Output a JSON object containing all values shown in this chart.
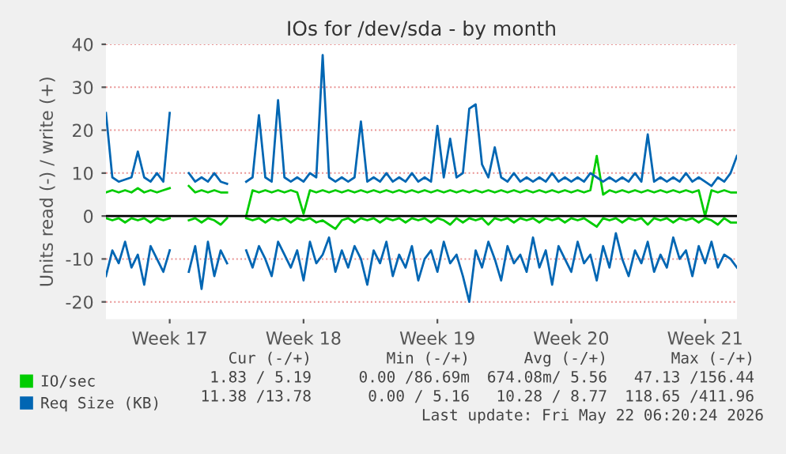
{
  "chart_data": {
    "type": "line",
    "title": "IOs for /dev/sda - by month",
    "ylabel": "Units read (-) / write (+)",
    "categories": [
      null,
      null,
      null,
      null,
      null,
      null,
      null,
      null,
      null,
      null,
      "Week 17",
      null,
      null,
      null,
      null,
      null,
      null,
      null,
      null,
      null,
      null,
      null,
      null,
      null,
      null,
      null,
      null,
      null,
      null,
      null,
      null,
      "Week 18",
      null,
      null,
      null,
      null,
      null,
      null,
      null,
      null,
      null,
      null,
      null,
      null,
      null,
      null,
      null,
      null,
      null,
      null,
      null,
      null,
      "Week 19",
      null,
      null,
      null,
      null,
      null,
      null,
      null,
      null,
      null,
      null,
      null,
      null,
      null,
      null,
      null,
      null,
      null,
      null,
      null,
      null,
      "Week 20",
      null,
      null,
      null,
      null,
      null,
      null,
      null,
      null,
      null,
      null,
      null,
      null,
      null,
      null,
      null,
      null,
      null,
      null,
      null,
      null,
      "Week 21",
      null,
      null,
      null,
      null,
      null
    ],
    "series": [
      {
        "name": "IO/sec",
        "color": "#00cc00",
        "values": [
          5.5,
          6,
          5.5,
          6,
          5.5,
          6.5,
          5.5,
          6,
          5.5,
          6,
          6.5,
          null,
          null,
          7,
          5.5,
          6,
          5.5,
          6,
          5.5,
          5.5,
          null,
          null,
          0,
          6,
          5.5,
          6,
          5.5,
          6,
          5.5,
          6,
          5.5,
          0.5,
          6,
          5.5,
          6,
          5.5,
          6,
          5.5,
          6,
          5.5,
          6,
          5.5,
          6,
          5.5,
          6,
          5.5,
          6,
          5.5,
          6,
          5.5,
          6,
          5.5,
          6,
          5.5,
          6,
          5.5,
          6,
          5.5,
          6,
          5.5,
          6,
          5.5,
          6,
          5.5,
          6,
          5.5,
          6,
          5.5,
          6,
          5.5,
          6,
          5.5,
          6,
          5.5,
          6,
          5.5,
          6,
          14,
          5,
          6,
          5.5,
          6,
          5.5,
          6,
          5.5,
          6,
          5.5,
          6,
          5.5,
          6,
          5.5,
          6,
          5.5,
          6,
          0,
          6,
          5.5,
          6,
          5.5,
          5.5
        ]
      },
      {
        "color": "#00cc00",
        "values": [
          -0.5,
          -1,
          -0.5,
          -1.5,
          -0.5,
          -1,
          -0.5,
          -1.5,
          -0.5,
          -1,
          -0.5,
          null,
          null,
          -1,
          -0.5,
          -1.5,
          -0.5,
          -1,
          -2,
          -0.5,
          null,
          null,
          -0.5,
          -1,
          -0.5,
          -1.5,
          -0.5,
          -1,
          -0.5,
          -1.5,
          -0.5,
          -1,
          -0.5,
          -1.5,
          -1,
          -2,
          -3,
          -1,
          -0.5,
          -1.5,
          -0.5,
          -1,
          -0.5,
          -1.5,
          -0.5,
          -1,
          -0.5,
          -1.5,
          -0.5,
          -1,
          -0.5,
          -1.5,
          -0.5,
          -1,
          -2,
          -0.5,
          -1.5,
          -0.5,
          -1,
          -0.5,
          -2,
          -0.5,
          -1,
          -0.5,
          -1.5,
          -0.5,
          -1,
          -0.5,
          -1.5,
          -0.5,
          -1,
          -0.5,
          -1.5,
          -0.5,
          -1,
          -0.5,
          -1.5,
          -2.5,
          -0.5,
          -1,
          -0.5,
          -1.5,
          -0.5,
          -1,
          -0.5,
          -2,
          -0.5,
          -1,
          -0.5,
          -1.5,
          -0.5,
          -1,
          -0.5,
          -1.5,
          -0.5,
          -1,
          -2,
          -0.5,
          -1.5,
          -1.5
        ]
      },
      {
        "name": "Req Size (KB)",
        "color": "#0066b3",
        "values": [
          24,
          9,
          8,
          8.5,
          9,
          15,
          9,
          8,
          10,
          8,
          24,
          null,
          null,
          10,
          8,
          9,
          8,
          10,
          8,
          7.5,
          null,
          null,
          8,
          9,
          23.5,
          9,
          8,
          27,
          9,
          8,
          9,
          8,
          10,
          9,
          37.5,
          9,
          8,
          9,
          8,
          9,
          22,
          8,
          9,
          8,
          10,
          8,
          9,
          8,
          10,
          8,
          9,
          8,
          21,
          9,
          18,
          9,
          10,
          25,
          26,
          12,
          9,
          16,
          9,
          8,
          10,
          8,
          9,
          8,
          9,
          8,
          10,
          8,
          9,
          8,
          9,
          8,
          10,
          9,
          8,
          9,
          8,
          9,
          8,
          10,
          8,
          19,
          8,
          9,
          8,
          9,
          8,
          10,
          8,
          9,
          8,
          7,
          9,
          8,
          10,
          14
        ]
      },
      {
        "color": "#0066b3",
        "values": [
          -14,
          -8,
          -11,
          -6,
          -12,
          -9,
          -16,
          -7,
          -10,
          -13,
          -8,
          null,
          null,
          -13,
          -7,
          -17,
          -6,
          -14,
          -8,
          -11,
          null,
          null,
          -8,
          -12,
          -7,
          -10,
          -14,
          -6,
          -9,
          -12,
          -8,
          -15,
          -6,
          -11,
          -9,
          -5,
          -13,
          -8,
          -12,
          -7,
          -10,
          -16,
          -8,
          -11,
          -6,
          -14,
          -9,
          -12,
          -7,
          -15,
          -10,
          -8,
          -13,
          -6,
          -11,
          -9,
          -14,
          -20,
          -8,
          -12,
          -6,
          -10,
          -15,
          -7,
          -11,
          -9,
          -13,
          -5,
          -12,
          -8,
          -16,
          -7,
          -10,
          -13,
          -6,
          -11,
          -9,
          -15,
          -7,
          -12,
          -4,
          -10,
          -14,
          -8,
          -11,
          -6,
          -13,
          -9,
          -12,
          -5,
          -10,
          -8,
          -14,
          -7,
          -11,
          -6,
          -12,
          -9,
          -10,
          -12
        ]
      }
    ],
    "ylim": [
      -24,
      40
    ],
    "yticks": [
      -20,
      -10,
      0,
      10,
      20,
      30,
      40
    ],
    "grid": "y",
    "legend": "bottom left",
    "ref_lines": [
      {
        "axis": "y",
        "value": 0,
        "color": "#000000"
      }
    ],
    "annotations": [
      "Cur (-/+)",
      "Min (-/+)",
      "Avg (-/+)",
      "Max (-/+)",
      "1.83 / 5.19",
      "0.00 /86.69m",
      "674.08m/ 5.56",
      "47.13 /156.44",
      "11.38 /13.78",
      "0.00 / 5.16",
      "10.28 / 8.77",
      "118.65 /411.96",
      "Last update: Fri May 22 06:20:24 2026"
    ]
  }
}
